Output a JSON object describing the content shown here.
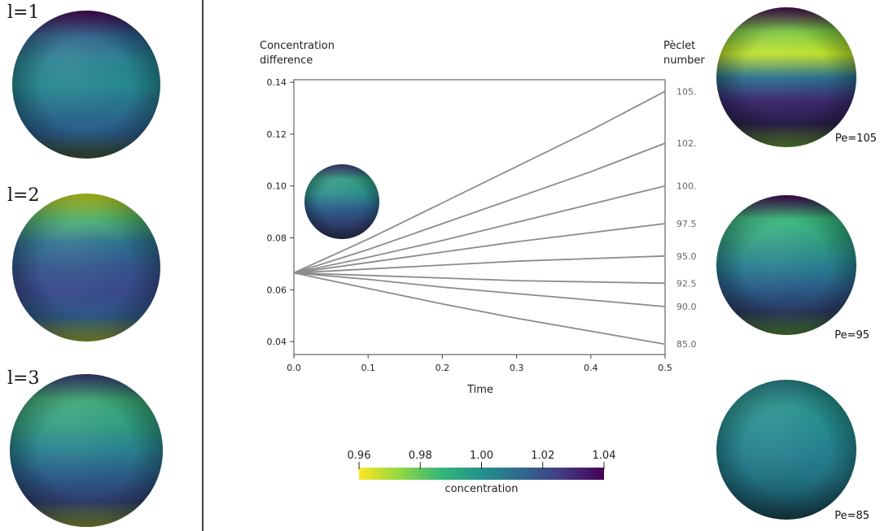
{
  "colors": {
    "viridis": [
      "#fde725",
      "#90d743",
      "#35b779",
      "#21918c",
      "#31688e",
      "#443983",
      "#440154"
    ],
    "line": "#8c8c8c",
    "axis": "#444444",
    "divider": "#000000"
  },
  "left_panel": {
    "spheres": [
      {
        "label": "l=1",
        "stops": [
          "#440154",
          "#2c5f8a",
          "#277f8e",
          "#24878e",
          "#2a6f8d",
          "#2b5b87",
          "#3b4d30"
        ]
      },
      {
        "label": "l=2",
        "stops": [
          "#d8e219",
          "#4fb66b",
          "#2a6f8d",
          "#33538b",
          "#3a4a8c",
          "#2f5a87",
          "#8a9a30"
        ]
      },
      {
        "label": "l=3",
        "stops": [
          "#3a3a7a",
          "#3aa874",
          "#2e9a7e",
          "#277f8e",
          "#2b5b87",
          "#2f3f6e",
          "#7a8a30"
        ]
      }
    ]
  },
  "chart_data": {
    "type": "line",
    "y_title": [
      "Concentration",
      "difference"
    ],
    "right_title": [
      "Pèclet",
      "number"
    ],
    "xlabel": "Time",
    "xlim": [
      0,
      0.5
    ],
    "ylim": [
      0.035,
      0.141
    ],
    "x_ticks": [
      "0.0",
      "0.1",
      "0.2",
      "0.3",
      "0.4",
      "0.5"
    ],
    "y_ticks": [
      "0.04",
      "0.06",
      "0.08",
      "0.10",
      "0.12",
      "0.14"
    ],
    "series": [
      {
        "name": "105.",
        "points": [
          [
            0,
            0.0665
          ],
          [
            0.1,
            0.0795
          ],
          [
            0.2,
            0.0935
          ],
          [
            0.3,
            0.1075
          ],
          [
            0.4,
            0.1215
          ],
          [
            0.5,
            0.1365
          ]
        ]
      },
      {
        "name": "102.",
        "points": [
          [
            0,
            0.0665
          ],
          [
            0.1,
            0.0755
          ],
          [
            0.2,
            0.0855
          ],
          [
            0.3,
            0.0955
          ],
          [
            0.4,
            0.1055
          ],
          [
            0.5,
            0.1165
          ]
        ]
      },
      {
        "name": "100.",
        "points": [
          [
            0,
            0.0665
          ],
          [
            0.1,
            0.0725
          ],
          [
            0.2,
            0.079
          ],
          [
            0.3,
            0.086
          ],
          [
            0.4,
            0.093
          ],
          [
            0.5,
            0.1
          ]
        ]
      },
      {
        "name": "97.5",
        "points": [
          [
            0,
            0.0665
          ],
          [
            0.1,
            0.0705
          ],
          [
            0.2,
            0.0745
          ],
          [
            0.3,
            0.0785
          ],
          [
            0.4,
            0.082
          ],
          [
            0.5,
            0.0855
          ]
        ]
      },
      {
        "name": "95.0",
        "points": [
          [
            0,
            0.0665
          ],
          [
            0.1,
            0.068
          ],
          [
            0.2,
            0.0695
          ],
          [
            0.3,
            0.071
          ],
          [
            0.4,
            0.072
          ],
          [
            0.5,
            0.073
          ]
        ]
      },
      {
        "name": "92.5",
        "points": [
          [
            0,
            0.0665
          ],
          [
            0.1,
            0.0655
          ],
          [
            0.2,
            0.0645
          ],
          [
            0.3,
            0.0635
          ],
          [
            0.4,
            0.063
          ],
          [
            0.5,
            0.0625
          ]
        ]
      },
      {
        "name": "90.0",
        "points": [
          [
            0,
            0.0665
          ],
          [
            0.1,
            0.064
          ],
          [
            0.2,
            0.061
          ],
          [
            0.3,
            0.0585
          ],
          [
            0.4,
            0.056
          ],
          [
            0.5,
            0.0535
          ]
        ]
      },
      {
        "name": "85.0",
        "points": [
          [
            0,
            0.0665
          ],
          [
            0.1,
            0.0605
          ],
          [
            0.2,
            0.0545
          ],
          [
            0.3,
            0.049
          ],
          [
            0.4,
            0.044
          ],
          [
            0.5,
            0.039
          ]
        ]
      }
    ],
    "inset_sphere": {
      "stops": [
        "#443983",
        "#2e9a7e",
        "#2a8a8a",
        "#2b5b87",
        "#2f3f6e",
        "#28304f"
      ]
    },
    "colorbar": {
      "label": "concentration",
      "ticks": [
        "0.96",
        "0.98",
        "1.00",
        "1.02",
        "1.04"
      ],
      "range": [
        0.96,
        1.04
      ]
    }
  },
  "right_panel": {
    "spheres": [
      {
        "label": "Pe=105",
        "stops": [
          "#440154",
          "#7ac843",
          "#bddf26",
          "#2a6f8d",
          "#3b2a6e",
          "#2a1f4a",
          "#5a8a30"
        ]
      },
      {
        "label": "Pe=95",
        "stops": [
          "#440154",
          "#35b779",
          "#2e9a7e",
          "#277f8e",
          "#2b5b87",
          "#2a3a60",
          "#4a7a30"
        ]
      },
      {
        "label": "Pe=85",
        "stops": [
          "#24878e",
          "#25908a",
          "#22898c",
          "#24808e",
          "#237585",
          "#1d5e6e",
          "#163f4a"
        ]
      }
    ]
  }
}
